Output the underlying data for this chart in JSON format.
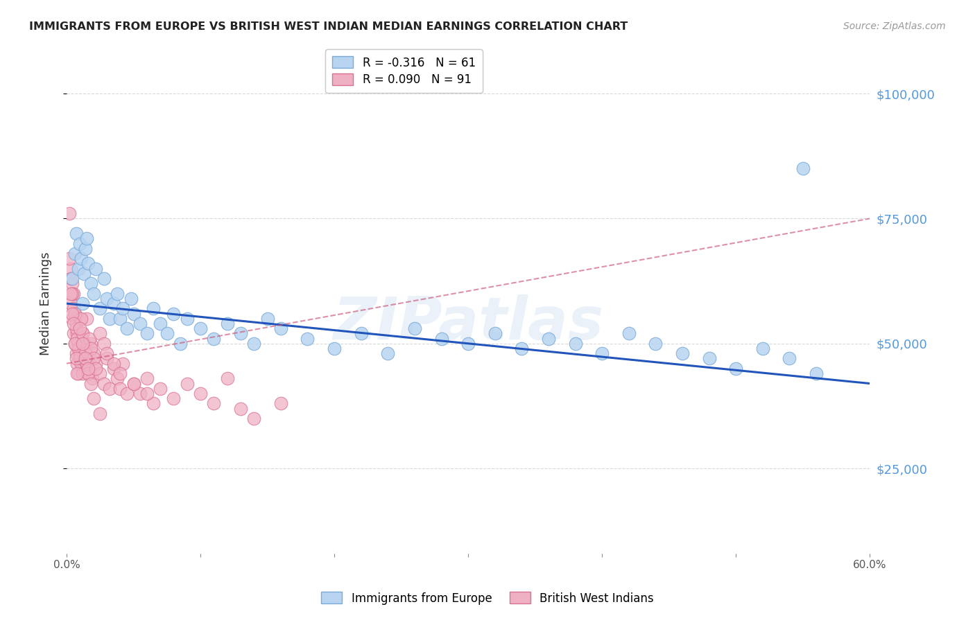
{
  "title": "IMMIGRANTS FROM EUROPE VS BRITISH WEST INDIAN MEDIAN EARNINGS CORRELATION CHART",
  "source": "Source: ZipAtlas.com",
  "ylabel": "Median Earnings",
  "watermark": "ZIPatlas",
  "legend": [
    {
      "label": "R = -0.316   N = 61",
      "color": "#a8c8f0"
    },
    {
      "label": "R = 0.090   N = 91",
      "color": "#f0b8c8"
    }
  ],
  "legend_labels_bottom": [
    "Immigrants from Europe",
    "British West Indians"
  ],
  "ytick_values": [
    25000,
    50000,
    75000,
    100000
  ],
  "ylim": [
    8000,
    108000
  ],
  "xlim": [
    0.0,
    0.6
  ],
  "europe_color": "#b8d4f0",
  "europe_edge_color": "#7aaad8",
  "bwi_color": "#f0b0c4",
  "bwi_edge_color": "#d87090",
  "europe_line_color": "#2255bb",
  "bwi_line_color": "#cc5577",
  "background_color": "#ffffff",
  "grid_color": "#d0d0d0",
  "title_color": "#222222",
  "right_axis_color": "#5599dd",
  "europe_x": [
    0.004,
    0.006,
    0.007,
    0.009,
    0.01,
    0.011,
    0.012,
    0.013,
    0.014,
    0.015,
    0.016,
    0.018,
    0.02,
    0.022,
    0.025,
    0.028,
    0.03,
    0.032,
    0.035,
    0.038,
    0.04,
    0.042,
    0.045,
    0.048,
    0.05,
    0.055,
    0.06,
    0.065,
    0.07,
    0.075,
    0.08,
    0.085,
    0.09,
    0.1,
    0.11,
    0.12,
    0.13,
    0.14,
    0.15,
    0.16,
    0.18,
    0.2,
    0.22,
    0.24,
    0.26,
    0.28,
    0.3,
    0.32,
    0.34,
    0.36,
    0.38,
    0.4,
    0.42,
    0.44,
    0.46,
    0.48,
    0.5,
    0.52,
    0.54,
    0.56,
    0.55
  ],
  "europe_y": [
    63000,
    68000,
    72000,
    65000,
    70000,
    67000,
    58000,
    64000,
    69000,
    71000,
    66000,
    62000,
    60000,
    65000,
    57000,
    63000,
    59000,
    55000,
    58000,
    60000,
    55000,
    57000,
    53000,
    59000,
    56000,
    54000,
    52000,
    57000,
    54000,
    52000,
    56000,
    50000,
    55000,
    53000,
    51000,
    54000,
    52000,
    50000,
    55000,
    53000,
    51000,
    49000,
    52000,
    48000,
    53000,
    51000,
    50000,
    52000,
    49000,
    51000,
    50000,
    48000,
    52000,
    50000,
    48000,
    47000,
    45000,
    49000,
    47000,
    44000,
    85000
  ],
  "bwi_x": [
    0.002,
    0.003,
    0.003,
    0.004,
    0.004,
    0.005,
    0.005,
    0.006,
    0.006,
    0.007,
    0.007,
    0.008,
    0.008,
    0.009,
    0.009,
    0.01,
    0.01,
    0.011,
    0.012,
    0.012,
    0.013,
    0.014,
    0.015,
    0.015,
    0.016,
    0.017,
    0.018,
    0.019,
    0.02,
    0.022,
    0.025,
    0.028,
    0.03,
    0.032,
    0.035,
    0.038,
    0.04,
    0.042,
    0.045,
    0.05,
    0.055,
    0.06,
    0.065,
    0.07,
    0.08,
    0.09,
    0.1,
    0.11,
    0.12,
    0.13,
    0.14,
    0.16,
    0.003,
    0.004,
    0.005,
    0.006,
    0.007,
    0.008,
    0.009,
    0.01,
    0.011,
    0.012,
    0.013,
    0.014,
    0.015,
    0.016,
    0.017,
    0.018,
    0.02,
    0.022,
    0.025,
    0.028,
    0.03,
    0.035,
    0.04,
    0.05,
    0.06,
    0.002,
    0.003,
    0.004,
    0.005,
    0.006,
    0.007,
    0.008,
    0.01,
    0.012,
    0.014,
    0.016,
    0.018,
    0.02,
    0.025
  ],
  "bwi_y": [
    76000,
    65000,
    58000,
    62000,
    55000,
    60000,
    52000,
    56000,
    50000,
    54000,
    48000,
    52000,
    46000,
    50000,
    44000,
    48000,
    55000,
    46000,
    52000,
    44000,
    50000,
    48000,
    46000,
    55000,
    44000,
    47000,
    50000,
    43000,
    48000,
    46000,
    44000,
    42000,
    47000,
    41000,
    45000,
    43000,
    41000,
    46000,
    40000,
    42000,
    40000,
    43000,
    38000,
    41000,
    39000,
    42000,
    40000,
    38000,
    43000,
    37000,
    35000,
    38000,
    63000,
    60000,
    57000,
    56000,
    53000,
    51000,
    49000,
    47000,
    55000,
    52000,
    50000,
    48000,
    46000,
    44000,
    51000,
    49000,
    47000,
    45000,
    52000,
    50000,
    48000,
    46000,
    44000,
    42000,
    40000,
    67000,
    60000,
    56000,
    54000,
    50000,
    47000,
    44000,
    53000,
    50000,
    47000,
    45000,
    42000,
    39000,
    36000
  ],
  "europe_trend_x": [
    0.0,
    0.6
  ],
  "europe_trend_y": [
    58000,
    42000
  ],
  "bwi_trend_x": [
    0.0,
    0.6
  ],
  "bwi_trend_y": [
    46000,
    75000
  ]
}
